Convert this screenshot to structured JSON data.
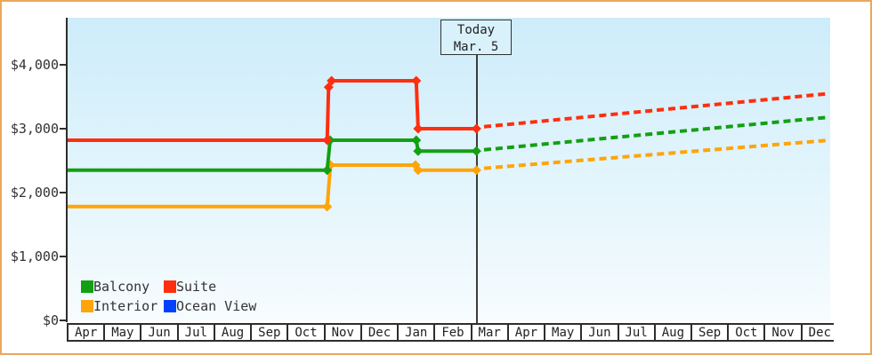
{
  "window": {
    "frame_border_color": "#eba85c"
  },
  "today_marker": {
    "line1": "Today",
    "line2": "Mar. 5",
    "month_index": 11.15
  },
  "legend": {
    "items": [
      {
        "label": "Balcony",
        "color": "#12a012"
      },
      {
        "label": "Suite",
        "color": "#ff2e0e"
      },
      {
        "label": "Interior",
        "color": "#ffa40a"
      },
      {
        "label": "Ocean View",
        "color": "#0040ff"
      }
    ]
  },
  "chart_data": {
    "type": "line",
    "title": "",
    "xlabel": "",
    "ylabel": "",
    "grid": false,
    "legend_position": "bottom-left",
    "y_axis": {
      "tick_labels": [
        "$0",
        "$1,000",
        "$2,000",
        "$3,000",
        "$4,000"
      ],
      "tick_values": [
        0,
        1000,
        2000,
        3000,
        4000
      ],
      "range": [
        0,
        4700
      ]
    },
    "x_axis": {
      "months": [
        "Apr",
        "May",
        "Jun",
        "Jul",
        "Aug",
        "Sep",
        "Oct",
        "Nov",
        "Dec",
        "Jan",
        "Feb",
        "Mar",
        "Apr",
        "May",
        "Jun",
        "Jul",
        "Aug",
        "Sep",
        "Oct",
        "Nov",
        "Dec"
      ]
    },
    "series": [
      {
        "name": "Interior",
        "color": "#ffa40a",
        "solid_points": [
          [
            0,
            1780
          ],
          [
            7.08,
            1780
          ],
          [
            7.17,
            2430
          ],
          [
            9.49,
            2430
          ],
          [
            9.56,
            2350
          ],
          [
            11.15,
            2350
          ]
        ],
        "dashed_points": [
          [
            11.36,
            2380
          ],
          [
            20.78,
            2820
          ]
        ]
      },
      {
        "name": "Balcony",
        "color": "#12a012",
        "solid_points": [
          [
            0,
            2350
          ],
          [
            7.08,
            2350
          ],
          [
            7.16,
            2820
          ],
          [
            9.51,
            2820
          ],
          [
            9.56,
            2650
          ],
          [
            11.15,
            2650
          ]
        ],
        "dashed_points": [
          [
            11.36,
            2670
          ],
          [
            20.78,
            3180
          ]
        ]
      },
      {
        "name": "Suite",
        "color": "#ff2e0e",
        "solid_points": [
          [
            0,
            2820
          ],
          [
            7.08,
            2820
          ],
          [
            7.12,
            3650
          ],
          [
            7.2,
            3750
          ],
          [
            9.51,
            3750
          ],
          [
            9.56,
            3000
          ],
          [
            11.15,
            3000
          ]
        ],
        "dashed_points": [
          [
            11.36,
            3030
          ],
          [
            20.78,
            3550
          ]
        ]
      },
      {
        "name": "Ocean View",
        "color": "#0040ff",
        "solid_points": [],
        "dashed_points": []
      }
    ]
  }
}
